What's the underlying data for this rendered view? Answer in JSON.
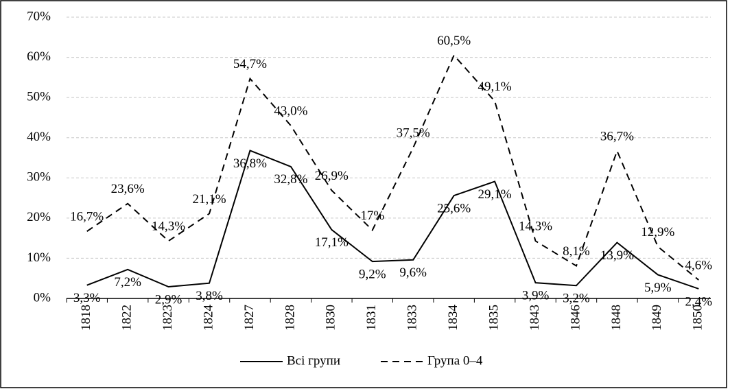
{
  "chart_data": {
    "type": "line",
    "categories": [
      "1818",
      "1822",
      "1823",
      "1824",
      "1827",
      "1828",
      "1830",
      "1831",
      "1833",
      "1834",
      "1835",
      "1843",
      "1846",
      "1848",
      "1849",
      "1850"
    ],
    "series": [
      {
        "name": "Всі групи",
        "color": "#000000",
        "dash": "solid",
        "values": [
          3.3,
          7.2,
          2.9,
          3.8,
          36.8,
          32.8,
          17.1,
          9.2,
          9.6,
          25.6,
          29.1,
          3.9,
          3.2,
          13.9,
          5.9,
          2.4
        ],
        "value_labels": [
          "3,3%",
          "7,2%",
          "2,9%",
          "3,8%",
          "36,8%",
          "32,8%",
          "17,1%",
          "9,2%",
          "9,6%",
          "25,6%",
          "29,1%",
          "3,9%",
          "3,2%",
          "13,9%",
          "5,9%",
          "2,4%"
        ]
      },
      {
        "name": "Група 0–4",
        "color": "#000000",
        "dash": "dashed",
        "values": [
          16.7,
          23.6,
          14.3,
          21.1,
          54.7,
          43.0,
          26.9,
          17,
          37.5,
          60.5,
          49.1,
          14.3,
          8.1,
          36.7,
          12.9,
          4.6
        ],
        "value_labels": [
          "16,7%",
          "23,6%",
          "14,3%",
          "21,1%",
          "54,7%",
          "43,0%",
          "26,9%",
          "17%",
          "37,5%",
          "60,5%",
          "49,1%",
          "14,3%",
          "8,1%",
          "36,7%",
          "12,9%",
          "4,6%"
        ]
      }
    ],
    "ylim": [
      0,
      70
    ],
    "yticks": [
      {
        "value": 0,
        "label": "0%"
      },
      {
        "value": 10,
        "label": "10%"
      },
      {
        "value": 20,
        "label": "20%"
      },
      {
        "value": 30,
        "label": "30%"
      },
      {
        "value": 40,
        "label": "40%"
      },
      {
        "value": 50,
        "label": "50%"
      },
      {
        "value": 60,
        "label": "60%"
      },
      {
        "value": 70,
        "label": "70%"
      }
    ],
    "grid": true,
    "legend": "bottom"
  }
}
